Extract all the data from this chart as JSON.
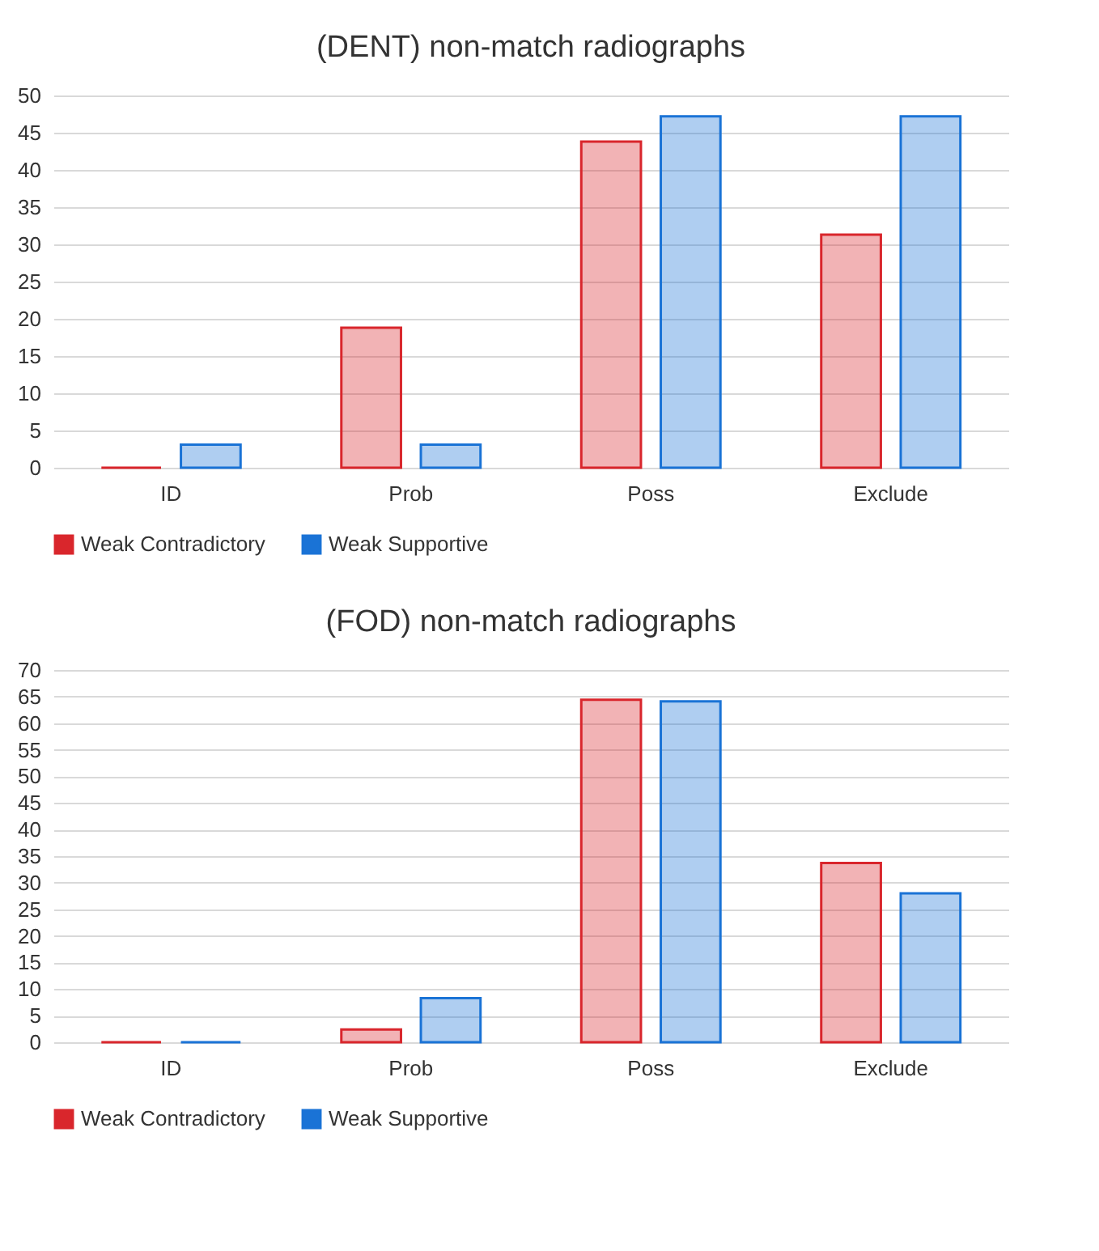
{
  "chart_data": [
    {
      "type": "bar",
      "title": "(DENT) non-match radiographs",
      "categories": [
        "ID",
        "Prob",
        "Poss",
        "Exclude"
      ],
      "series": [
        {
          "name": "Weak Contradictory",
          "color": "#d9262c",
          "values": [
            0,
            18.8,
            43.8,
            31.3
          ]
        },
        {
          "name": "Weak Supportive",
          "color": "#1a73d6",
          "values": [
            3.1,
            3.1,
            47.2,
            47.2
          ]
        }
      ],
      "ylim": [
        0,
        50
      ],
      "yticks": [
        0,
        5,
        10,
        15,
        20,
        25,
        30,
        35,
        40,
        45,
        50
      ],
      "grid": "y",
      "legend": "bottom"
    },
    {
      "type": "bar",
      "title": "(FOD) non-match radiographs",
      "categories": [
        "ID",
        "Prob",
        "Poss",
        "Exclude"
      ],
      "series": [
        {
          "name": "Weak Contradictory",
          "color": "#d9262c",
          "values": [
            0,
            2.4,
            64.4,
            33.7
          ]
        },
        {
          "name": "Weak Supportive",
          "color": "#1a73d6",
          "values": [
            0,
            8.3,
            64.1,
            28.0
          ]
        }
      ],
      "ylim": [
        0,
        70
      ],
      "yticks": [
        0,
        5,
        10,
        15,
        20,
        25,
        30,
        35,
        40,
        45,
        50,
        55,
        60,
        65,
        70
      ],
      "grid": "y",
      "legend": "bottom"
    }
  ]
}
